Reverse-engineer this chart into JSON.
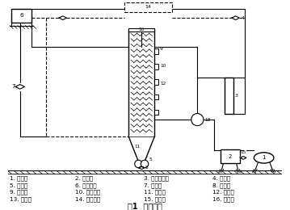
{
  "title": "图1  试验装置",
  "legend_items": [
    [
      "1. 空压机",
      "2. 贮气罐",
      "3. 转子流量计",
      "4. 电磁阀"
    ],
    [
      "5. 曝气器",
      "6. 高位水箱",
      "7. 出水管",
      "8. 排泥管"
    ],
    [
      "9. 反应器",
      "10. 纤维载体",
      "11. 沉淀池",
      "12. 取样口"
    ],
    [
      "13. 循环泵",
      "14. 自控装置",
      "15. 减压阀",
      "16. 布气管"
    ]
  ],
  "bg_color": "#ffffff",
  "line_color": "#000000"
}
